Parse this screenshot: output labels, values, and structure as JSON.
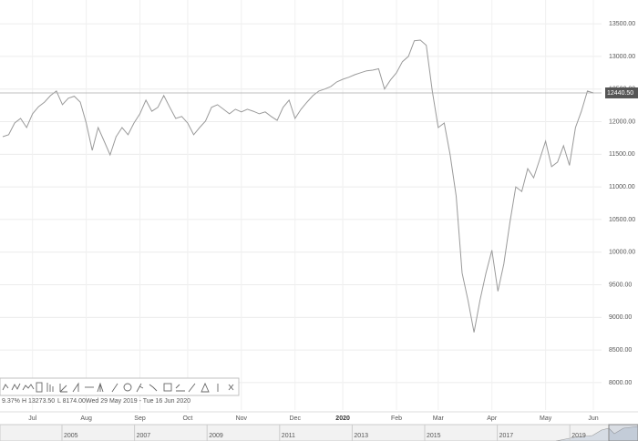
{
  "chart_data": {
    "type": "line",
    "categories": [
      null,
      null,
      null,
      null,
      null,
      "Jul",
      null,
      null,
      null,
      null,
      null,
      null,
      null,
      null,
      "Aug",
      null,
      null,
      null,
      null,
      null,
      null,
      null,
      null,
      "Sep",
      null,
      null,
      null,
      null,
      null,
      null,
      null,
      "Oct",
      null,
      null,
      null,
      null,
      null,
      null,
      null,
      null,
      "Nov",
      null,
      null,
      null,
      null,
      null,
      null,
      null,
      null,
      "Dec",
      null,
      null,
      null,
      null,
      null,
      null,
      null,
      "2020",
      null,
      null,
      null,
      null,
      null,
      null,
      null,
      null,
      "Feb",
      null,
      null,
      null,
      null,
      null,
      null,
      "Mar",
      null,
      null,
      null,
      null,
      null,
      null,
      null,
      null,
      "Apr",
      null,
      null,
      null,
      null,
      null,
      null,
      null,
      null,
      "May",
      null,
      null,
      null,
      null,
      null,
      null,
      null,
      "Jun"
    ],
    "series": [
      {
        "color": "#9a9a9a",
        "values": [
          11770,
          11800,
          11980,
          12050,
          11910,
          12120,
          12230,
          12300,
          12400,
          12470,
          12260,
          12360,
          12390,
          12300,
          11980,
          11560,
          11910,
          11700,
          11490,
          11770,
          11910,
          11800,
          11980,
          12120,
          12330,
          12160,
          12220,
          12400,
          12220,
          12050,
          12080,
          11980,
          11800,
          11910,
          12010,
          12220,
          12260,
          12190,
          12120,
          12190,
          12150,
          12190,
          12160,
          12120,
          12150,
          12080,
          12020,
          12220,
          12330,
          12050,
          12190,
          12300,
          12400,
          12470,
          12500,
          12540,
          12610,
          12650,
          12680,
          12720,
          12750,
          12780,
          12790,
          12810,
          12500,
          12640,
          12750,
          12920,
          13000,
          13240,
          13250,
          13170,
          12470,
          11910,
          11980,
          11490,
          10860,
          9680,
          9260,
          8770,
          9260,
          9680,
          10030,
          9400,
          9820,
          10450,
          11000,
          10930,
          11280,
          11140,
          11420,
          11700,
          11310,
          11380,
          11630,
          11330,
          11910,
          12160,
          12470,
          12440.5
        ]
      }
    ],
    "ylim": [
      7580,
      13865
    ],
    "yticks": [
      {
        "value": 8000,
        "label": "8000.00"
      },
      {
        "value": 8500,
        "label": "8500.00"
      },
      {
        "value": 9000,
        "label": "9000.00"
      },
      {
        "value": 9500,
        "label": "9500.00"
      },
      {
        "value": 10000,
        "label": "10000.00"
      },
      {
        "value": 10500,
        "label": "10500.00"
      },
      {
        "value": 11000,
        "label": "11000.00"
      },
      {
        "value": 11500,
        "label": "11500.00"
      },
      {
        "value": 12000,
        "label": "12000.00"
      },
      {
        "value": 12500,
        "label": "12500.00"
      },
      {
        "value": 13000,
        "label": "13000.00"
      },
      {
        "value": 13500,
        "label": "13500.00"
      }
    ],
    "grid": true,
    "last_price": {
      "value": 12440.5,
      "label": "12440.50"
    },
    "stats": {
      "change": "9.37%",
      "high": "H 13273.50",
      "low": "L 8174.00",
      "range": "Wed 29 May 2019 - Tue 16 Jun 2020"
    },
    "navigator_years": [
      "2005",
      "2007",
      "2009",
      "2011",
      "2013",
      "2015",
      "2017",
      "2019"
    ]
  }
}
